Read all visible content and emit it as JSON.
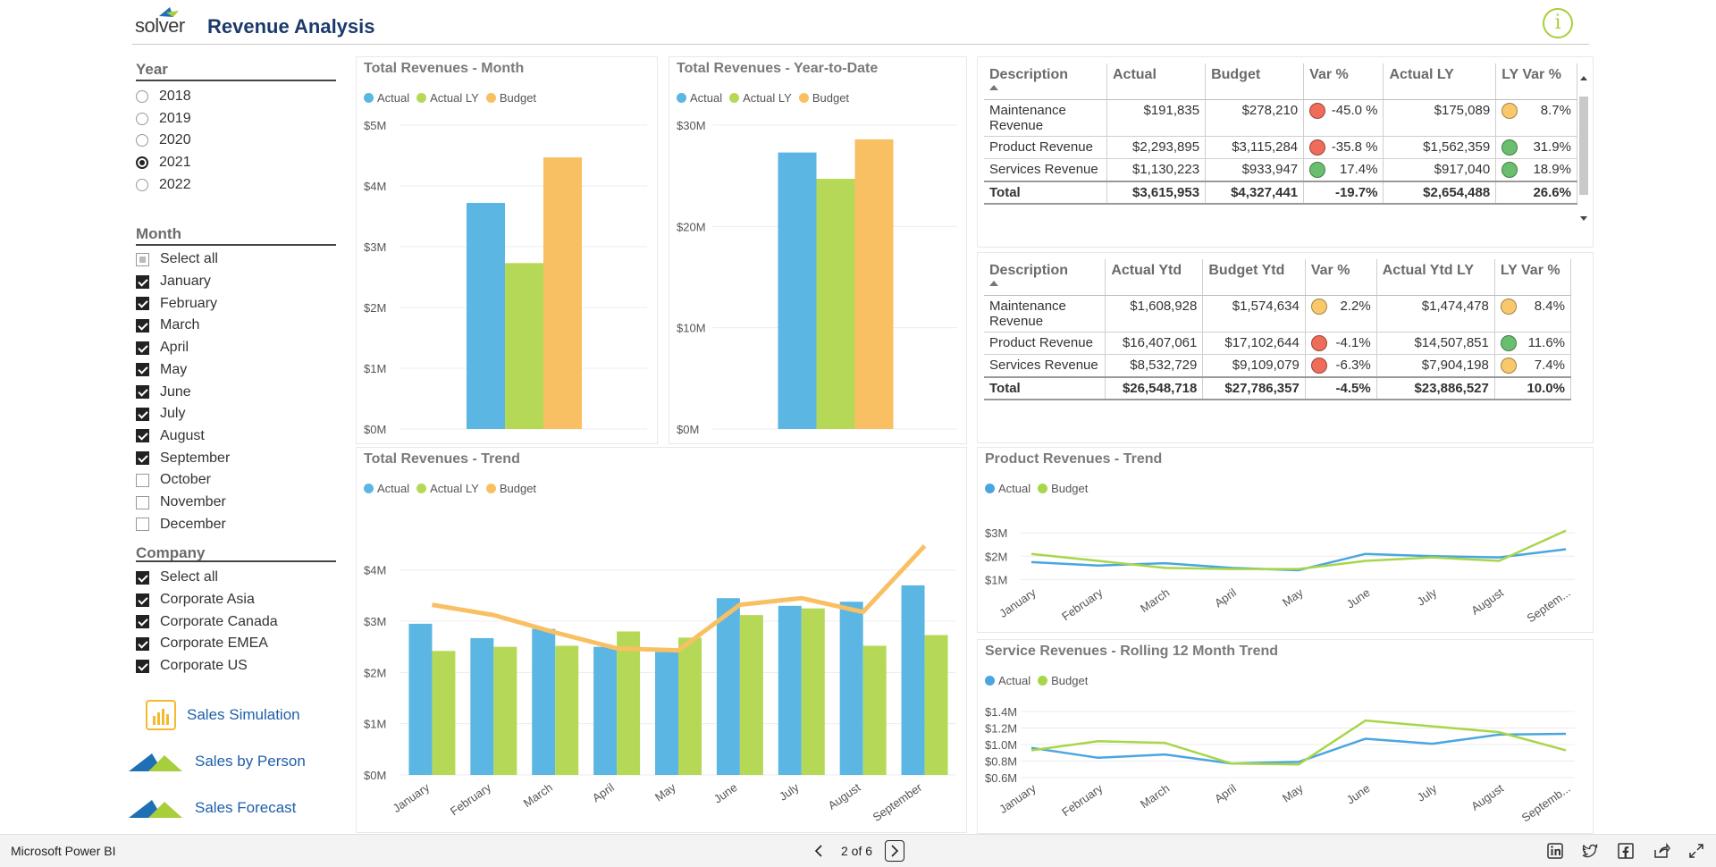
{
  "header": {
    "logo_text": "solver",
    "title": "Revenue Analysis",
    "info_icon": "info-icon",
    "info_glyph": "i"
  },
  "slicers": {
    "year": {
      "title": "Year",
      "options": [
        "2018",
        "2019",
        "2020",
        "2021",
        "2022"
      ],
      "selected": "2021"
    },
    "month": {
      "title": "Month",
      "select_all": "Select all",
      "options": [
        {
          "label": "January",
          "checked": true
        },
        {
          "label": "February",
          "checked": true
        },
        {
          "label": "March",
          "checked": true
        },
        {
          "label": "April",
          "checked": true
        },
        {
          "label": "May",
          "checked": true
        },
        {
          "label": "June",
          "checked": true
        },
        {
          "label": "July",
          "checked": true
        },
        {
          "label": "August",
          "checked": true
        },
        {
          "label": "September",
          "checked": true
        },
        {
          "label": "October",
          "checked": false
        },
        {
          "label": "November",
          "checked": false
        },
        {
          "label": "December",
          "checked": false
        }
      ]
    },
    "company": {
      "title": "Company",
      "select_all": "Select all",
      "options": [
        {
          "label": "Corporate Asia",
          "checked": true
        },
        {
          "label": "Corporate Canada",
          "checked": true
        },
        {
          "label": "Corporate EMEA",
          "checked": true
        },
        {
          "label": "Corporate US",
          "checked": true
        }
      ]
    }
  },
  "nav_links": [
    {
      "label": "Sales Simulation",
      "icon": "bar-chart-icon"
    },
    {
      "label": "Sales by Person",
      "icon": "solver-logo-icon"
    },
    {
      "label": "Sales Forecast",
      "icon": "solver-logo-icon"
    }
  ],
  "colors": {
    "actual": "#5bb6e3",
    "actual_ly": "#b5d957",
    "budget": "#f9c063",
    "product_actual": "#4aa6e0",
    "product_budget": "#a8d64a",
    "kpi_red": "#ef6b5a",
    "kpi_yellow": "#f9c86b",
    "kpi_green": "#69bf6e",
    "accent_title": "#1b3a6b",
    "info_green": "#a7cf3c"
  },
  "legends": {
    "three": [
      "Actual",
      "Actual LY",
      "Budget"
    ],
    "two": [
      "Actual",
      "Budget"
    ]
  },
  "chart_data": [
    {
      "id": "total-month",
      "type": "bar",
      "title": "Total Revenues - Month",
      "categories": [
        ""
      ],
      "series": [
        {
          "name": "Actual",
          "values": [
            3.72
          ]
        },
        {
          "name": "Actual LY",
          "values": [
            2.73
          ]
        },
        {
          "name": "Budget",
          "values": [
            4.47
          ]
        }
      ],
      "yticks": [
        "$0M",
        "$1M",
        "$2M",
        "$3M",
        "$4M",
        "$5M"
      ],
      "ylim": [
        0,
        5
      ],
      "grid": true,
      "legend": "top-left"
    },
    {
      "id": "total-ytd",
      "type": "bar",
      "title": "Total Revenues - Year-to-Date",
      "categories": [
        ""
      ],
      "series": [
        {
          "name": "Actual",
          "values": [
            27.3
          ]
        },
        {
          "name": "Actual LY",
          "values": [
            24.7
          ]
        },
        {
          "name": "Budget",
          "values": [
            28.6
          ]
        }
      ],
      "yticks": [
        "$0M",
        "$10M",
        "$20M",
        "$30M"
      ],
      "ylim": [
        0,
        30
      ],
      "grid": true,
      "legend": "top-left"
    },
    {
      "id": "total-trend",
      "type": "bar",
      "title": "Total Revenues - Trend",
      "categories": [
        "January",
        "February",
        "March",
        "April",
        "May",
        "June",
        "July",
        "August",
        "September"
      ],
      "series": [
        {
          "name": "Actual",
          "values": [
            2.95,
            2.67,
            2.85,
            2.5,
            2.4,
            3.45,
            3.3,
            3.38,
            3.7
          ],
          "kind": "bar"
        },
        {
          "name": "Actual LY",
          "values": [
            2.42,
            2.5,
            2.52,
            2.8,
            2.68,
            3.12,
            3.25,
            2.52,
            2.73
          ],
          "kind": "bar"
        },
        {
          "name": "Budget",
          "values": [
            3.32,
            3.12,
            2.78,
            2.47,
            2.43,
            3.32,
            3.45,
            3.18,
            4.47
          ],
          "kind": "line"
        }
      ],
      "yticks": [
        "$0M",
        "$1M",
        "$2M",
        "$3M",
        "$4M"
      ],
      "ylim": [
        0,
        4.5
      ],
      "grid": true,
      "legend": "top-left"
    },
    {
      "id": "product-trend",
      "type": "line",
      "title": "Product Revenues - Trend",
      "categories": [
        "January",
        "February",
        "March",
        "April",
        "May",
        "June",
        "July",
        "August",
        "Septem..."
      ],
      "series": [
        {
          "name": "Actual",
          "values": [
            1.75,
            1.6,
            1.7,
            1.5,
            1.4,
            2.1,
            2.0,
            1.95,
            2.3
          ]
        },
        {
          "name": "Budget",
          "values": [
            2.1,
            1.8,
            1.5,
            1.45,
            1.45,
            1.8,
            1.95,
            1.8,
            3.1
          ]
        }
      ],
      "yticks": [
        "$1M",
        "$2M",
        "$3M"
      ],
      "ylim": [
        0.9,
        3.2
      ],
      "grid": true,
      "legend": "top-left"
    },
    {
      "id": "service-trend",
      "type": "line",
      "title": "Service Revenues - Rolling 12 Month Trend",
      "categories": [
        "January",
        "February",
        "March",
        "April",
        "May",
        "June",
        "July",
        "August",
        "Septemb..."
      ],
      "series": [
        {
          "name": "Actual",
          "values": [
            0.96,
            0.84,
            0.88,
            0.77,
            0.79,
            1.07,
            1.01,
            1.12,
            1.13
          ]
        },
        {
          "name": "Budget",
          "values": [
            0.93,
            1.04,
            1.02,
            0.77,
            0.76,
            1.29,
            1.22,
            1.15,
            0.93
          ]
        }
      ],
      "yticks": [
        "$0.6M",
        "$0.8M",
        "$1.0M",
        "$1.2M",
        "$1.4M"
      ],
      "ylim": [
        0.6,
        1.4
      ],
      "grid": true,
      "legend": "top-left"
    }
  ],
  "table_month": {
    "headers": [
      "Description",
      "Actual",
      "Budget",
      "Var %",
      "Actual LY",
      "LY Var %"
    ],
    "rows": [
      {
        "desc": "Maintenance Revenue",
        "actual": "$191,835",
        "budget": "$278,210",
        "var": "-45.0 %",
        "var_kpi": "red",
        "ly": "$175,089",
        "lyvar": "8.7%",
        "lyvar_kpi": "yellow"
      },
      {
        "desc": "Product Revenue",
        "actual": "$2,293,895",
        "budget": "$3,115,284",
        "var": "-35.8 %",
        "var_kpi": "red",
        "ly": "$1,562,359",
        "lyvar": "31.9%",
        "lyvar_kpi": "green"
      },
      {
        "desc": "Services Revenue",
        "actual": "$1,130,223",
        "budget": "$933,947",
        "var": "17.4%",
        "var_kpi": "green",
        "ly": "$917,040",
        "lyvar": "18.9%",
        "lyvar_kpi": "green"
      }
    ],
    "total": {
      "desc": "Total",
      "actual": "$3,615,953",
      "budget": "$4,327,441",
      "var": "-19.7%",
      "ly": "$2,654,488",
      "lyvar": "26.6%"
    }
  },
  "table_ytd": {
    "headers": [
      "Description",
      "Actual Ytd",
      "Budget Ytd",
      "Var %",
      "Actual Ytd LY",
      "LY Var %"
    ],
    "rows": [
      {
        "desc": "Maintenance Revenue",
        "actual": "$1,608,928",
        "budget": "$1,574,634",
        "var": "2.2%",
        "var_kpi": "yellow",
        "ly": "$1,474,478",
        "lyvar": "8.4%",
        "lyvar_kpi": "yellow"
      },
      {
        "desc": "Product Revenue",
        "actual": "$16,407,061",
        "budget": "$17,102,644",
        "var": "-4.1%",
        "var_kpi": "red",
        "ly": "$14,507,851",
        "lyvar": "11.6%",
        "lyvar_kpi": "green"
      },
      {
        "desc": "Services Revenue",
        "actual": "$8,532,729",
        "budget": "$9,109,079",
        "var": "-6.3%",
        "var_kpi": "red",
        "ly": "$7,904,198",
        "lyvar": "7.4%",
        "lyvar_kpi": "yellow"
      }
    ],
    "total": {
      "desc": "Total",
      "actual": "$26,548,718",
      "budget": "$27,786,357",
      "var": "-4.5%",
      "ly": "$23,886,527",
      "lyvar": "10.0%"
    }
  },
  "footer": {
    "brand": "Microsoft Power BI",
    "page_label": "2 of 6",
    "share_icons": [
      "linkedin-icon",
      "twitter-icon",
      "facebook-icon",
      "share-icon",
      "fullscreen-icon"
    ]
  }
}
